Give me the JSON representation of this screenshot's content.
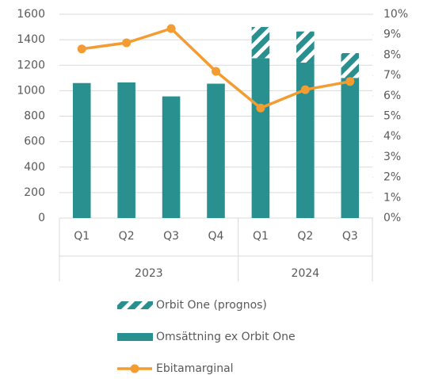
{
  "chart_data": {
    "type": "bar",
    "category_groups": [
      {
        "label": "2023",
        "categories": [
          "Q1",
          "Q2",
          "Q3",
          "Q4"
        ]
      },
      {
        "label": "2024",
        "categories": [
          "Q1",
          "Q2",
          "Q3"
        ]
      }
    ],
    "series": [
      {
        "name": "Orbit One (prognos)",
        "color": "#2a8f8f",
        "hatch": true,
        "values": [
          null,
          null,
          null,
          null,
          245,
          245,
          195
        ]
      },
      {
        "name": "Omsättning ex Orbit One",
        "color": "#2a8f8f",
        "values": [
          1060,
          1065,
          955,
          1055,
          1255,
          1220,
          1100
        ]
      },
      {
        "name": "Ebitamarginal",
        "type": "line",
        "axis": "y2",
        "color": "#f39c32",
        "values": [
          8.3,
          8.6,
          9.3,
          7.2,
          5.4,
          6.3,
          6.7
        ]
      }
    ],
    "ylim": [
      0,
      1600
    ],
    "yticks": [
      0,
      200,
      400,
      600,
      800,
      1000,
      1200,
      1400,
      1600
    ],
    "y2lim": [
      0,
      10
    ],
    "y2ticks": [
      {
        "value": 0,
        "label": "0%"
      },
      {
        "value": 1,
        "label": "1%"
      },
      {
        "value": 2,
        "label": "2%"
      },
      {
        "value": 3,
        "label": "3%"
      },
      {
        "value": 4,
        "label": "4%"
      },
      {
        "value": 5,
        "label": "5%"
      },
      {
        "value": 6,
        "label": "6%"
      },
      {
        "value": 7,
        "label": "7%"
      },
      {
        "value": 8,
        "label": "8%"
      },
      {
        "value": 9,
        "label": "9%"
      },
      {
        "value": 10,
        "label": "10%"
      }
    ],
    "legend": "bottom"
  }
}
